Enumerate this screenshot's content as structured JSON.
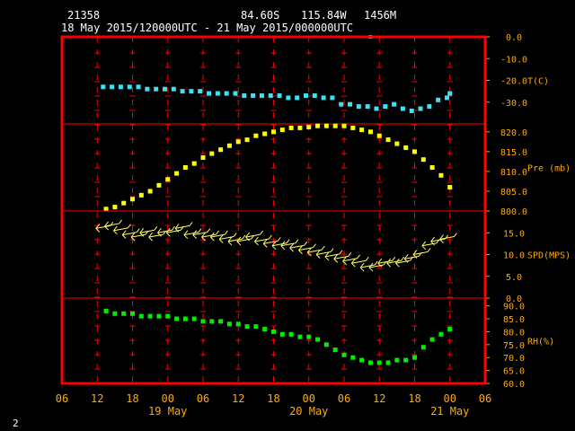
{
  "header": {
    "station_id": "21358",
    "latitude": "84.60S",
    "longitude": "115.84W",
    "elevation": "1456M",
    "time_range": "18 May 2015/120000UTC - 21 May 2015/000000UTC"
  },
  "footer": {
    "page_number": "2"
  },
  "colors": {
    "frame": "#ff0000",
    "grid": "#ff0000",
    "labels": "#ffaa00",
    "temperature": "#40e0f0",
    "pressure": "#ffff00",
    "wind": "#ffff66",
    "humidity": "#00ee00",
    "header_text": "#ffffff"
  },
  "chart_data": {
    "type": "scatter",
    "x_axis": {
      "unit": "hours since 18 May 2015 06UTC",
      "range": [
        0,
        72
      ],
      "tick_labels": [
        "06",
        "12",
        "18",
        "00",
        "06",
        "12",
        "18",
        "00",
        "06",
        "12",
        "18",
        "00",
        "06"
      ],
      "date_labels": [
        {
          "label": "19 May",
          "at_hour": 18
        },
        {
          "label": "20 May",
          "at_hour": 42
        },
        {
          "label": "21 May",
          "at_hour": 66
        }
      ]
    },
    "panels": [
      {
        "id": "temperature",
        "label": "T(C)",
        "range": [
          -40,
          0
        ],
        "ticks": [
          "0.0",
          "-10.0",
          "-20.0",
          "-30.0"
        ],
        "tick_values": [
          0,
          -10,
          -20,
          -30
        ],
        "marker": "square",
        "x": [
          7,
          8.5,
          10,
          11.5,
          13,
          14.5,
          16,
          17.5,
          19,
          20.5,
          22,
          23.5,
          25,
          26.5,
          28,
          29.5,
          31,
          32.5,
          34,
          35.5,
          37,
          38.5,
          40,
          41.5,
          43,
          44.5,
          46,
          47.5,
          49,
          50.5,
          52,
          53.5,
          55,
          56.5,
          58,
          59.5,
          61,
          62.5,
          64,
          65.5,
          66
        ],
        "values": [
          -23,
          -23,
          -23,
          -23,
          -23,
          -24,
          -24,
          -24,
          -24,
          -25,
          -25,
          -25,
          -26,
          -26,
          -26,
          -26,
          -27,
          -27,
          -27,
          -27,
          -27,
          -28,
          -28,
          -27,
          -27,
          -28,
          -28,
          -31,
          -31,
          -32,
          -32,
          -33,
          -32,
          -31,
          -33,
          -34,
          -33,
          -32,
          -29,
          -28,
          -26
        ],
        "outlier": {
          "x": 52.5,
          "value": 0
        }
      },
      {
        "id": "pressure",
        "label": "Pre (mb)",
        "range": [
          800,
          822
        ],
        "ticks": [
          "820.0",
          "815.0",
          "810.0",
          "805.0",
          "800.0"
        ],
        "tick_values": [
          820,
          815,
          810,
          805,
          800
        ],
        "marker": "square",
        "x": [
          7.5,
          9,
          10.5,
          12,
          13.5,
          15,
          16.5,
          18,
          19.5,
          21,
          22.5,
          24,
          25.5,
          27,
          28.5,
          30,
          31.5,
          33,
          34.5,
          36,
          37.5,
          39,
          40.5,
          42,
          43.5,
          45,
          46.5,
          48,
          49.5,
          51,
          52.5,
          54,
          55.5,
          57,
          58.5,
          60,
          61.5,
          63,
          64.5,
          66
        ],
        "values": [
          800.5,
          801,
          802,
          803,
          804,
          805,
          806.5,
          808,
          809.5,
          811,
          812,
          813.5,
          814.5,
          815.5,
          816.5,
          817.5,
          818,
          819,
          819.5,
          820,
          820.5,
          821,
          821,
          821.2,
          821.5,
          821.5,
          821.5,
          821.5,
          821,
          820.5,
          820,
          819,
          818,
          817,
          816,
          815,
          813,
          811,
          809,
          806
        ]
      },
      {
        "id": "wind",
        "label": "SPD(MPS)",
        "range": [
          0,
          20
        ],
        "ticks": [
          "15.0",
          "10.0",
          "5.0",
          "0.0"
        ],
        "tick_values": [
          15,
          10,
          5,
          0
        ],
        "marker": "wind-barb",
        "x": [
          7,
          8.5,
          10,
          11.5,
          13,
          14.5,
          16,
          17.5,
          19,
          20.5,
          22,
          23.5,
          25,
          26.5,
          28,
          29.5,
          31,
          32.5,
          34,
          35.5,
          37,
          38.5,
          40,
          41.5,
          43,
          44.5,
          46,
          47.5,
          49,
          50.5,
          52,
          53.5,
          55,
          56.5,
          58,
          59.5,
          61,
          62.5,
          64,
          65.5
        ],
        "values": [
          16,
          16.5,
          15.5,
          14.5,
          14,
          15,
          14,
          15,
          15,
          16,
          14.5,
          14.5,
          14,
          14,
          13.5,
          13,
          13,
          14,
          13,
          12.5,
          12,
          12,
          11.5,
          11,
          10.5,
          10,
          9.5,
          9,
          8.5,
          8,
          7,
          7,
          8,
          8,
          8,
          9,
          10,
          12,
          13,
          13.5
        ]
      },
      {
        "id": "humidity",
        "label": "RH(%)",
        "range": [
          60,
          93
        ],
        "ticks": [
          "90.0",
          "85.0",
          "80.0",
          "75.0",
          "70.0",
          "65.0",
          "60.0"
        ],
        "tick_values": [
          90,
          85,
          80,
          75,
          70,
          65,
          60
        ],
        "marker": "square",
        "x": [
          7.5,
          9,
          10.5,
          12,
          13.5,
          15,
          16.5,
          18,
          19.5,
          21,
          22.5,
          24,
          25.5,
          27,
          28.5,
          30,
          31.5,
          33,
          34.5,
          36,
          37.5,
          39,
          40.5,
          42,
          43.5,
          45,
          46.5,
          48,
          49.5,
          51,
          52.5,
          54,
          55.5,
          57,
          58.5,
          60,
          61.5,
          63,
          64.5,
          66
        ],
        "values": [
          88,
          87,
          87,
          87,
          86,
          86,
          86,
          86,
          85,
          85,
          85,
          84,
          84,
          84,
          83,
          83,
          82,
          82,
          81,
          80,
          79,
          79,
          78,
          78,
          77,
          75,
          73,
          71,
          70,
          69,
          68,
          68,
          68,
          69,
          69,
          70,
          74,
          77,
          79,
          81
        ]
      }
    ]
  }
}
